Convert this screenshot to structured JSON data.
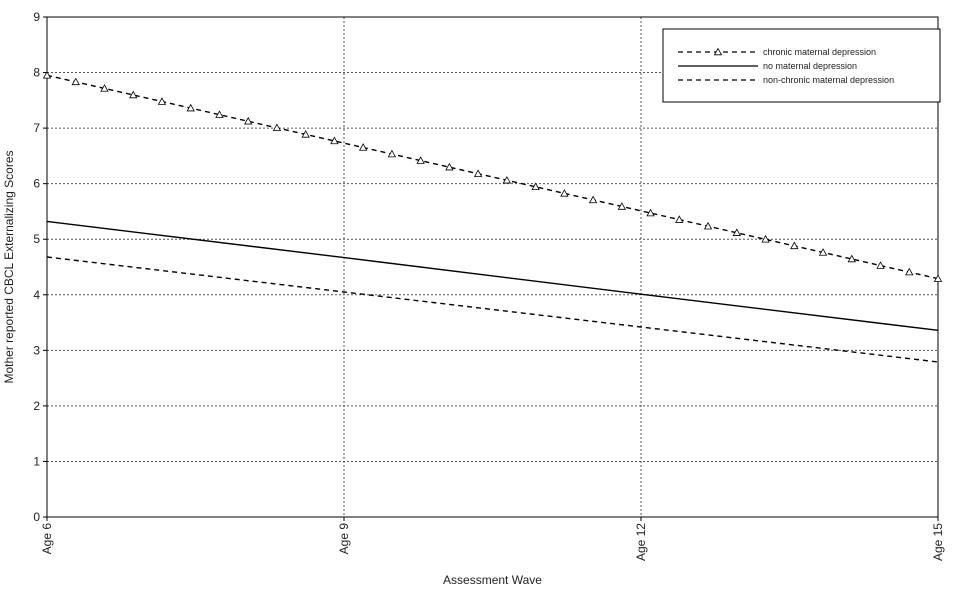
{
  "chart_data": {
    "type": "line",
    "title": "",
    "xlabel": "Assessment Wave",
    "ylabel": "Mother reported CBCL Externalizing Scores",
    "x_ticks": [
      "Age 6",
      "Age 9",
      "Age 12",
      "Age 15"
    ],
    "x_values": [
      6,
      9,
      12,
      15
    ],
    "xlim": [
      6,
      15
    ],
    "ylim": [
      0,
      9
    ],
    "y_ticks": [
      "0",
      "1",
      "2",
      "3",
      "4",
      "5",
      "6",
      "7",
      "8",
      "9"
    ],
    "grid": true,
    "legend_position": "top-right",
    "series": [
      {
        "name": "chronic maternal depression",
        "style": "dashed-triangle",
        "values": [
          7.95,
          6.73,
          5.51,
          4.29
        ]
      },
      {
        "name": "no maternal depression",
        "style": "solid",
        "values": [
          5.32,
          4.67,
          4.01,
          3.36
        ]
      },
      {
        "name": "non-chronic maternal depression",
        "style": "dashed",
        "values": [
          4.68,
          4.05,
          3.42,
          2.79
        ]
      }
    ]
  }
}
